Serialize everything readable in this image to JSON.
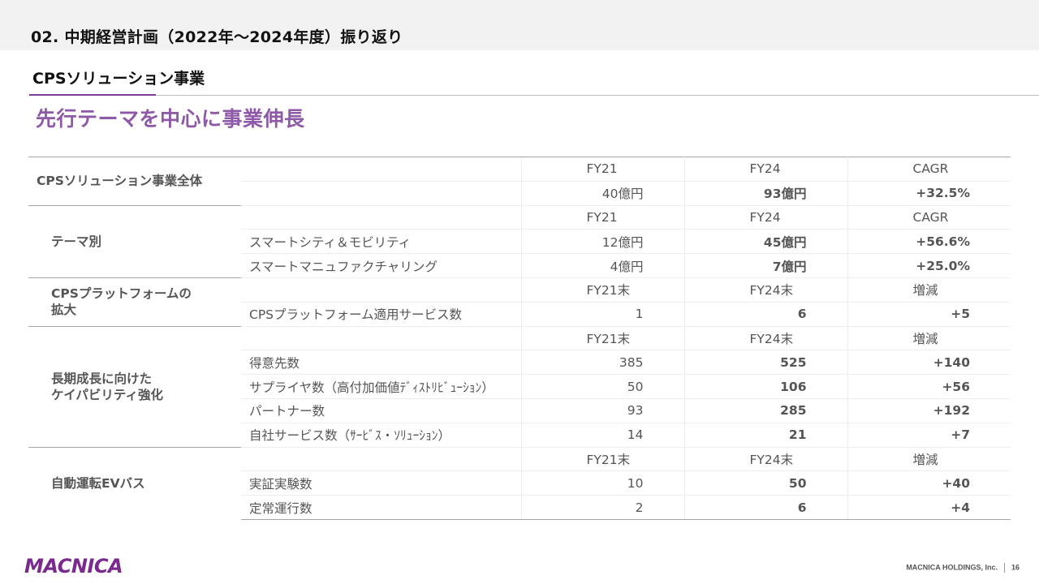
{
  "header": {
    "section_title": "02. 中期経営計画（2022年～2024年度）振り返り",
    "subsection_title": "CPSソリューション事業",
    "headline": "先行テーマを中心に事業伸長"
  },
  "table": {
    "overall": {
      "label": "CPSソリューション事業全体",
      "h21": "FY21",
      "h24": "FY24",
      "hchg": "CAGR",
      "v21": "40億円",
      "v24": "93億円",
      "chg": "+32.5%"
    },
    "theme": {
      "label": "テーマ別",
      "h21": "FY21",
      "h24": "FY24",
      "hchg": "CAGR",
      "rows": [
        {
          "item": "スマートシティ＆モビリティ",
          "v21": "12億円",
          "v24": "45億円",
          "chg": "+56.6%"
        },
        {
          "item": "スマートマニュファクチャリング",
          "v21": "4億円",
          "v24": "7億円",
          "chg": "+25.0%"
        }
      ]
    },
    "platform": {
      "label_line1": "CPSプラットフォームの",
      "label_line2": "拡大",
      "h21": "FY21末",
      "h24": "FY24末",
      "hchg": "増減",
      "rows": [
        {
          "item": "CPSプラットフォーム適用サービス数",
          "v21": "1",
          "v24": "6",
          "chg": "+5"
        }
      ]
    },
    "capability": {
      "label_line1": "長期成長に向けた",
      "label_line2": "ケイパビリティ強化",
      "h21": "FY21末",
      "h24": "FY24末",
      "hchg": "増減",
      "rows": [
        {
          "item": "得意先数",
          "v21": "385",
          "v24": "525",
          "chg": "+140"
        },
        {
          "item": "サプライヤ数（高付加価値ﾃﾞｨｽﾄﾘﾋﾞｭｰｼｮﾝ）",
          "v21": "50",
          "v24": "106",
          "chg": "+56"
        },
        {
          "item": "パートナー数",
          "v21": "93",
          "v24": "285",
          "chg": "+192"
        },
        {
          "item": "自社サービス数（ｻｰﾋﾞｽ・ｿﾘｭｰｼｮﾝ）",
          "v21": "14",
          "v24": "21",
          "chg": "+7"
        }
      ]
    },
    "ev": {
      "label": "自動運転EVバス",
      "h21": "FY21末",
      "h24": "FY24末",
      "hchg": "増減",
      "rows": [
        {
          "item": "実証実験数",
          "v21": "10",
          "v24": "50",
          "chg": "+40"
        },
        {
          "item": "定常運行数",
          "v21": "2",
          "v24": "6",
          "chg": "+4"
        }
      ]
    }
  },
  "footer": {
    "logo": "MACNICA",
    "company": "MACNICA HOLDINGS, Inc.",
    "page": "16"
  },
  "colors": {
    "accent": "#6e1f7d",
    "headline": "#8e5aa8",
    "band": "#f2f2f2"
  }
}
